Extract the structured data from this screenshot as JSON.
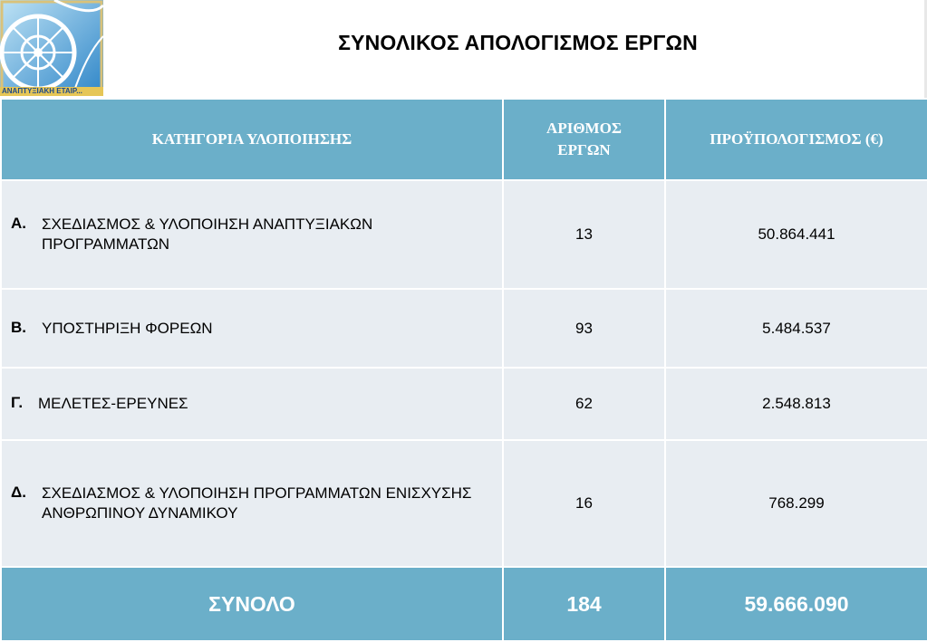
{
  "title": "ΣΥΝΟΛΙΚΟΣ ΑΠΟΛΟΓΙΣΜΟΣ ΕΡΓΩΝ",
  "logo": {
    "caption": "ΑΝΑΠΤΥΞΙΑΚΗ ΕΤΑΙΡ..."
  },
  "table": {
    "headers": [
      "ΚΑΤΗΓΟΡΙΑ ΥΛΟΠΟΙΗΣΗΣ",
      "ΑΡΙΘΜΟΣ ΕΡΓΩΝ",
      "ΠΡΟΫΠΟΛΟΓΙΣΜΟΣ (€)"
    ],
    "rows": [
      {
        "letter": "Α.",
        "category": "ΣΧΕΔΙΑΣΜΟΣ & ΥΛΟΠΟΙΗΣΗ ΑΝΑΠΤΥΞΙΑΚΩΝ ΠΡΟΓΡΑΜΜΑΤΩΝ",
        "count": "13",
        "budget": "50.864.441"
      },
      {
        "letter": "Β.",
        "category": "ΥΠΟΣΤΗΡΙΞΗ ΦΟΡΕΩΝ",
        "count": "93",
        "budget": "5.484.537"
      },
      {
        "letter": "Γ.",
        "category": "ΜΕΛΕΤΕΣ-ΕΡΕΥΝΕΣ",
        "count": "62",
        "budget": "2.548.813"
      },
      {
        "letter": "Δ.",
        "category": "ΣΧΕΔΙΑΣΜΟΣ & ΥΛΟΠΟΙΗΣΗ ΠΡΟΓΡΑΜΜΑΤΩΝ ΕΝΙΣΧΥΣΗΣ ΑΝΘΡΩΠΙΝΟΥ ΔΥΝΑΜΙΚΟΥ",
        "count": "16",
        "budget": "768.299"
      }
    ],
    "total": {
      "label": "ΣΥΝΟΛΟ",
      "count": "184",
      "budget": "59.666.090"
    }
  },
  "colors": {
    "header": "#6bafc9",
    "row": "#e8edf2",
    "border": "#ffffff"
  }
}
